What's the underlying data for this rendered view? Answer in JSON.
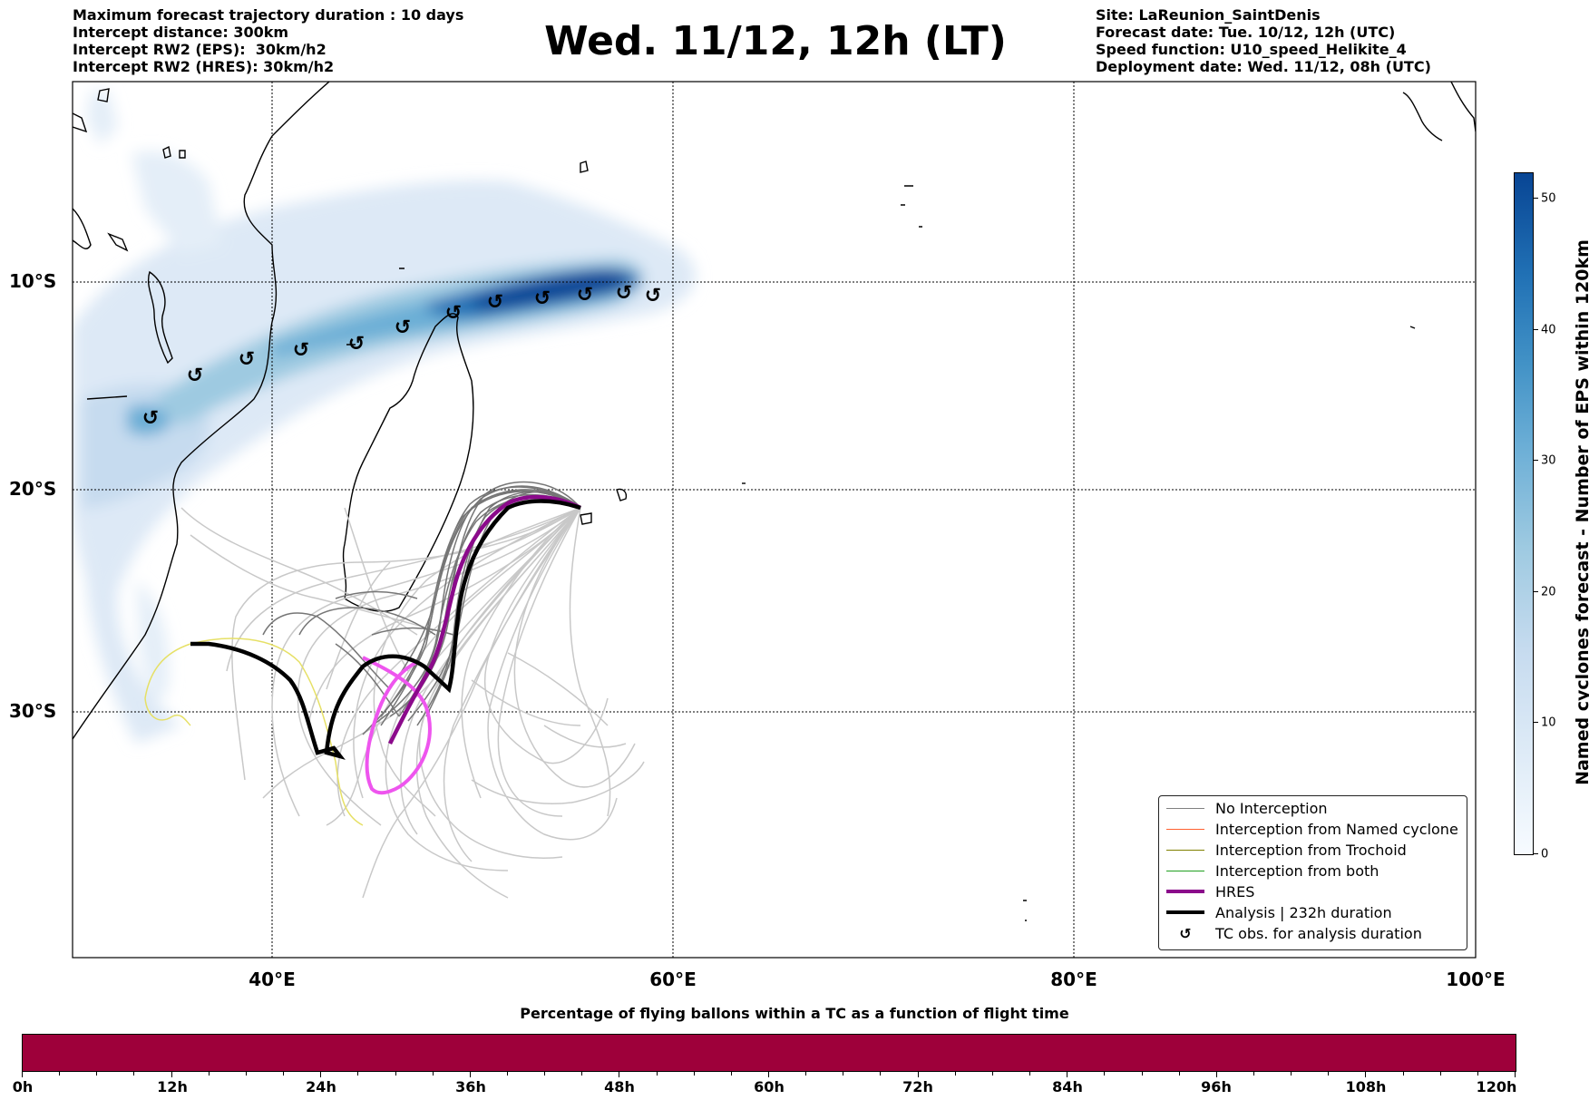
{
  "header_left": [
    "Maximum forecast trajectory duration : 10 days",
    "Intercept distance: 300km",
    "Intercept RW2 (EPS):  30km/h2",
    "Intercept RW2 (HRES): 30km/h2"
  ],
  "header_right": [
    "Site: LaReunion_SaintDenis",
    "Forecast date: Tue. 10/12, 12h (UTC)",
    "Speed function: U10_speed_Helikite_4",
    "Deployment date: Wed. 11/12, 08h (UTC)"
  ],
  "title": "Wed. 11/12, 12h (LT)",
  "map": {
    "lat_labels": [
      "10°S",
      "20°S",
      "30°S"
    ],
    "lon_labels": [
      "40°E",
      "60°E",
      "80°E",
      "100°E"
    ],
    "tc_symbol": "↺",
    "colors": {
      "no_interception": "#808080",
      "named_cyclone": "#ff6030",
      "trochoid": "#808000",
      "both": "#20a020",
      "hres": "#8b0a8b",
      "analysis": "#000000"
    }
  },
  "legend": {
    "items": [
      {
        "label": "No Interception",
        "color": "#808080",
        "style": "thin"
      },
      {
        "label": "Interception from Named cyclone",
        "color": "#ff6030",
        "style": "thin"
      },
      {
        "label": "Interception from Trochoid",
        "color": "#808000",
        "style": "thin"
      },
      {
        "label": "Interception from both",
        "color": "#20a020",
        "style": "thin"
      },
      {
        "label": "HRES",
        "color": "#8b0a8b",
        "style": "thick"
      },
      {
        "label": "Analysis | 232h duration",
        "color": "#000000",
        "style": "thick"
      },
      {
        "label": "TC obs. for analysis duration",
        "color": "#000000",
        "style": "symbol"
      }
    ]
  },
  "colorbar": {
    "label": "Named cyclones forecast - Number of EPS within 120km",
    "ticks": [
      "0",
      "10",
      "20",
      "30",
      "40",
      "50"
    ],
    "max": 52
  },
  "bottom": {
    "title": "Percentage of flying ballons within a TC as a function of flight time",
    "ticks": [
      "0h",
      "12h",
      "24h",
      "36h",
      "48h",
      "60h",
      "72h",
      "84h",
      "96h",
      "108h",
      "120h"
    ],
    "color": "#9e003a"
  }
}
